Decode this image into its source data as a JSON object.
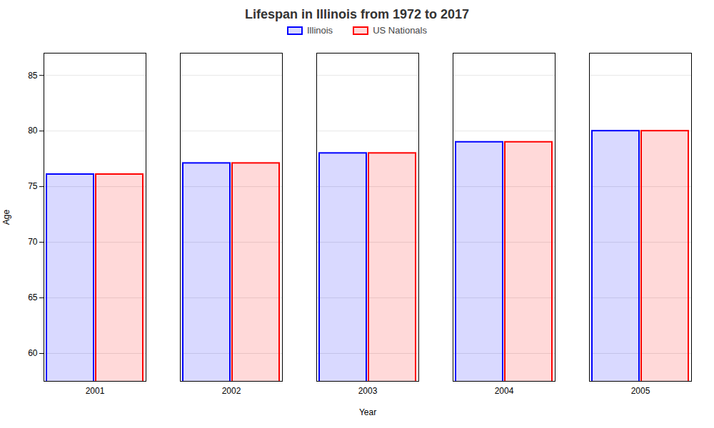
{
  "chart_data": {
    "type": "bar",
    "title": "Lifespan in Illinois from 1972 to 2017",
    "x_label": "Year",
    "y_label": "Age",
    "categories": [
      "2001",
      "2002",
      "2003",
      "2004",
      "2005"
    ],
    "series": [
      {
        "name": "Illinois",
        "color": "#0000ff",
        "values": [
          76.1,
          77.1,
          78.0,
          79.0,
          80.0
        ]
      },
      {
        "name": "US Nationals",
        "color": "#ff0000",
        "values": [
          76.1,
          77.1,
          78.0,
          79.0,
          80.0
        ]
      }
    ],
    "ylim": [
      57.5,
      87
    ],
    "yticks": [
      60,
      65,
      70,
      75,
      80,
      85
    ],
    "grid": true,
    "legend": "top"
  }
}
